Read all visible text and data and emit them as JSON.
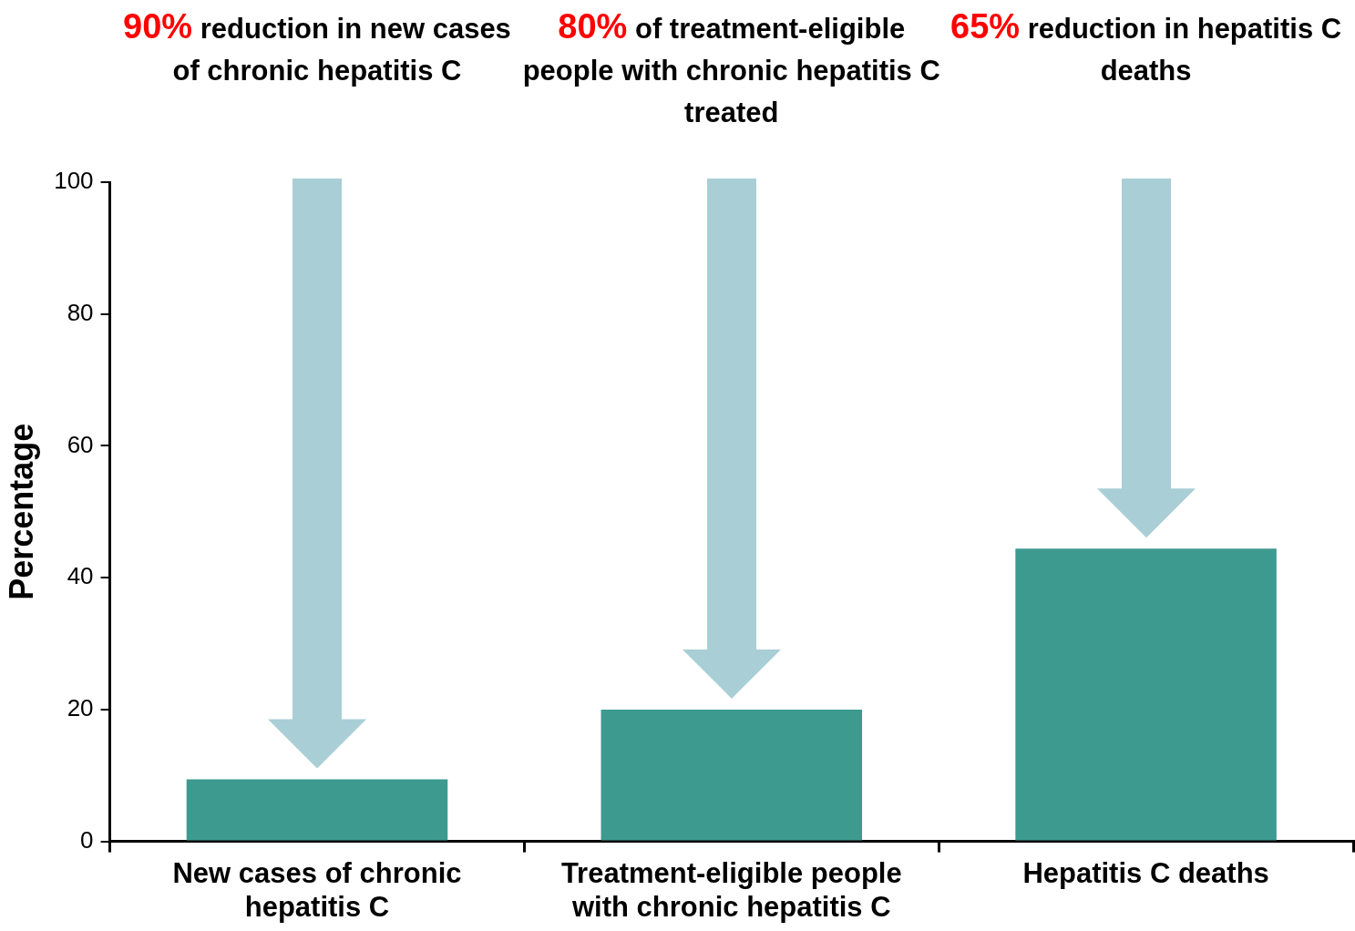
{
  "chart_data": {
    "type": "bar",
    "categories": [
      "New cases of chronic hepatitis C",
      "Treatment-eligible people with chronic hepatitis C",
      "Hepatitis C deaths"
    ],
    "values": [
      9.4,
      20,
      44.4
    ],
    "color": "#3d9a8f",
    "ylabel": "Percentage",
    "ylim": [
      0,
      100
    ],
    "yticks": [
      0,
      20,
      40,
      60,
      80,
      100
    ],
    "grid": false,
    "legend": false,
    "annotations": [
      "90% reduction in new cases of chronic hepatitis C",
      "80% of treatment-eligible people with chronic hepatitis C treated",
      "65% reduction in hepatitis C deaths"
    ]
  }
}
